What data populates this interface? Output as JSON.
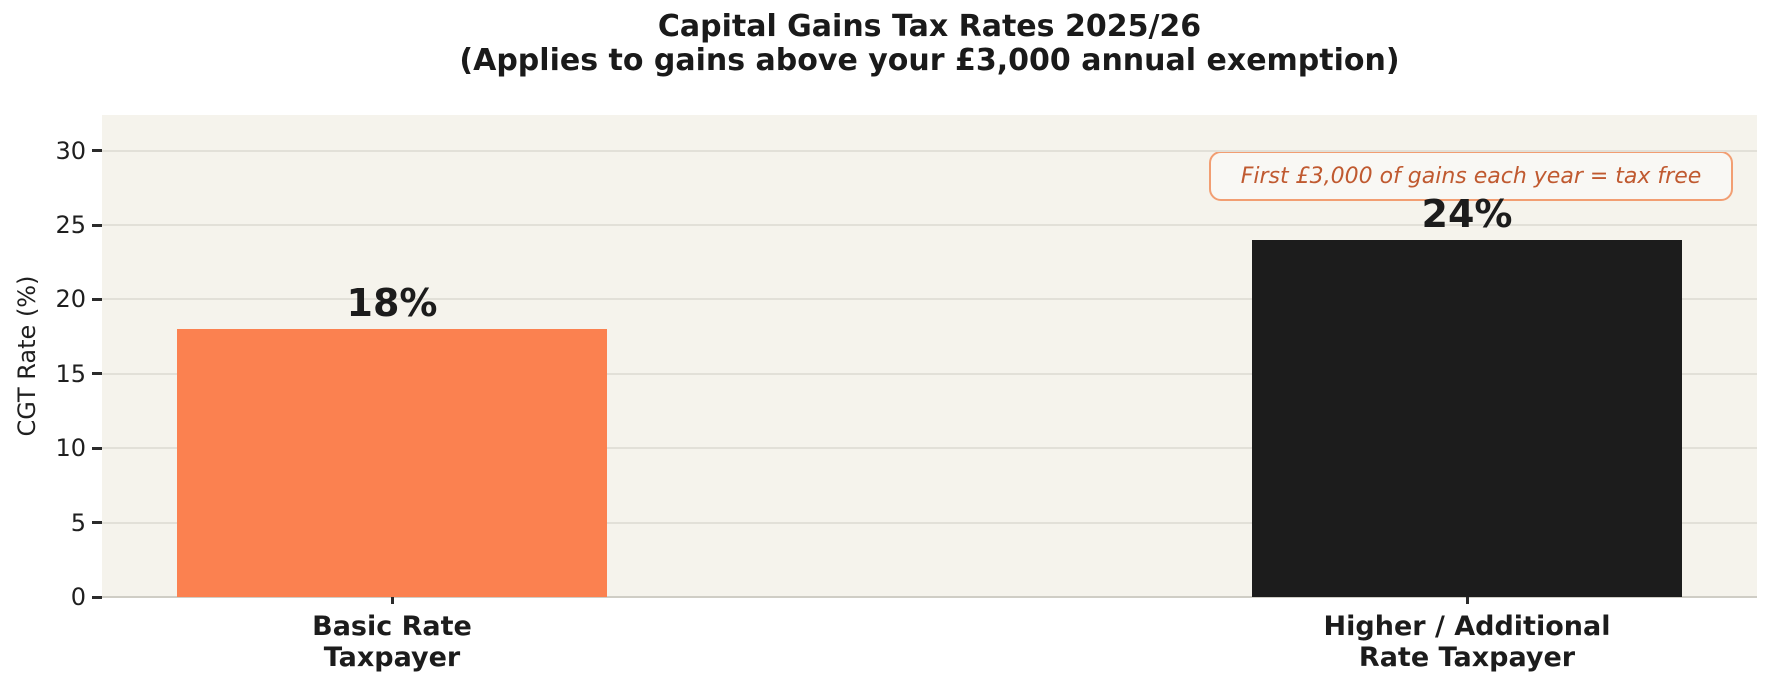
{
  "chart_data": {
    "type": "bar",
    "title": "Capital Gains Tax Rates 2025/26",
    "subtitle": "(Applies to gains above your £3,000 annual exemption)",
    "ylabel": "CGT Rate (%)",
    "xlabel": "",
    "categories": [
      "Basic Rate\nTaxpayer",
      "Higher / Additional\nRate Taxpayer"
    ],
    "values": [
      18,
      24
    ],
    "value_labels": [
      "18%",
      "24%"
    ],
    "bar_colors": [
      "#fb8150",
      "#1c1c1c"
    ],
    "yticks": [
      0,
      5,
      10,
      15,
      20,
      25,
      30
    ],
    "ylim": [
      0,
      32.4
    ],
    "grid": true,
    "legend_position": "none",
    "annotation": {
      "text": "First £3,000 of gains each year = tax free",
      "text_color": "#c05a30",
      "border_color": "#f29e72",
      "position": "top-right"
    },
    "colors": {
      "page_background": "#ffffff",
      "plot_background": "#f5f3ec",
      "gridline": "#e2e0d8",
      "zero_axis_line": "#cfcdc5",
      "text": "#1c1c1c"
    }
  }
}
